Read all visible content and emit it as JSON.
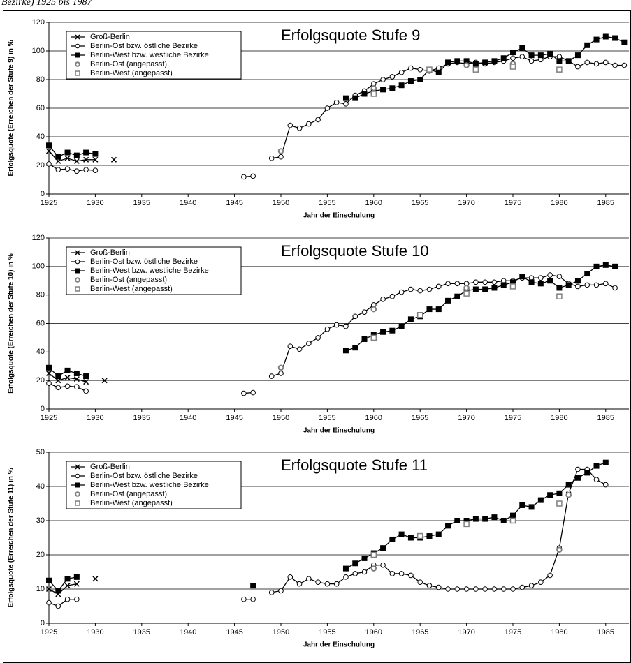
{
  "caption": "Bezirke) 1925 bis 1987",
  "chart_data": [
    {
      "type": "line",
      "title": "Erfolgsquote Stufe 9",
      "xlabel": "Jahr der Einschulung",
      "ylabel": "Erfolgsquote (Erreichen der Stufe 9) in %",
      "xlim": [
        1925,
        1987.5
      ],
      "xticks": [
        1925,
        1930,
        1935,
        1940,
        1945,
        1950,
        1955,
        1960,
        1965,
        1970,
        1975,
        1980,
        1985
      ],
      "ylim": [
        0,
        120
      ],
      "yticks": [
        0,
        20,
        40,
        60,
        80,
        100,
        120
      ],
      "grid": true,
      "legend": "upper left",
      "series": [
        {
          "name": "Groß-Berlin",
          "color": "#000000",
          "marker": "x",
          "filled": false,
          "line": true,
          "x": [
            1925,
            1926,
            1927,
            1928,
            1929,
            1930,
            1931,
            1932
          ],
          "values": [
            30,
            23,
            25,
            23,
            24,
            24,
            null,
            24
          ]
        },
        {
          "name": "Berlin-Ost bzw. östliche Bezirke",
          "color": "#000000",
          "marker": "circle",
          "filled": false,
          "line": true,
          "x": [
            1925,
            1926,
            1927,
            1928,
            1929,
            1930,
            1931,
            1946,
            1947,
            1948,
            1949,
            1950,
            1951,
            1952,
            1953,
            1954,
            1955,
            1956,
            1957,
            1958,
            1959,
            1960,
            1961,
            1962,
            1963,
            1964,
            1965,
            1966,
            1967,
            1968,
            1969,
            1970,
            1971,
            1972,
            1973,
            1974,
            1975,
            1976,
            1977,
            1978,
            1979,
            1980,
            1981,
            1982,
            1983,
            1984,
            1985,
            1986,
            1987
          ],
          "values": [
            21,
            17,
            17.5,
            16,
            17,
            16.5,
            null,
            12,
            12.5,
            null,
            25,
            26,
            48,
            46,
            49,
            52,
            60,
            64,
            63,
            69,
            72,
            77,
            80,
            82,
            85,
            88,
            87,
            86,
            88,
            91,
            92,
            91,
            92,
            91,
            92,
            93,
            95,
            96,
            93,
            94,
            96,
            96,
            93,
            89,
            92,
            91,
            92,
            90,
            90
          ]
        },
        {
          "name": "Berlin-West bzw. westliche Bezirke",
          "color": "#000000",
          "marker": "square",
          "filled": true,
          "line": true,
          "x": [
            1925,
            1926,
            1927,
            1928,
            1929,
            1930,
            1931,
            1957,
            1958,
            1959,
            1960,
            1961,
            1962,
            1963,
            1964,
            1965,
            1966,
            1967,
            1968,
            1969,
            1970,
            1971,
            1972,
            1973,
            1974,
            1975,
            1976,
            1977,
            1978,
            1979,
            1980,
            1981,
            1982,
            1983,
            1984,
            1985,
            1986,
            1987
          ],
          "values": [
            34,
            26,
            29,
            27,
            29,
            28,
            null,
            67,
            67,
            70,
            72,
            73,
            74,
            76,
            79,
            80,
            87,
            85,
            92,
            93,
            93,
            91,
            92,
            93,
            95,
            99,
            102,
            97,
            97,
            98,
            93,
            93,
            97,
            104,
            108,
            110,
            109,
            106
          ]
        },
        {
          "name": "Berlin-Ost (angepasst)",
          "color": "#808080",
          "marker": "circle",
          "filled": false,
          "line": false,
          "x": [
            1950,
            1960,
            1970,
            1975
          ],
          "values": [
            30,
            74,
            90,
            91
          ]
        },
        {
          "name": "Berlin-West (angepasst)",
          "color": "#808080",
          "marker": "square",
          "filled": false,
          "line": false,
          "x": [
            1960,
            1966,
            1971,
            1975,
            1980
          ],
          "values": [
            70,
            87,
            87,
            89,
            87
          ]
        }
      ]
    },
    {
      "type": "line",
      "title": "Erfolgsquote Stufe 10",
      "xlabel": "Jahr der Einschulung",
      "ylabel": "Erfolgsquote (Erreichen der Stufe 10) in %",
      "xlim": [
        1925,
        1987.5
      ],
      "xticks": [
        1925,
        1930,
        1935,
        1940,
        1945,
        1950,
        1955,
        1960,
        1965,
        1970,
        1975,
        1980,
        1985
      ],
      "ylim": [
        0,
        120
      ],
      "yticks": [
        0,
        20,
        40,
        60,
        80,
        100,
        120
      ],
      "grid": true,
      "legend": "upper left",
      "series": [
        {
          "name": "Groß-Berlin",
          "color": "#000000",
          "marker": "x",
          "filled": false,
          "line": true,
          "x": [
            1925,
            1926,
            1927,
            1928,
            1929,
            1930,
            1931
          ],
          "values": [
            25,
            20,
            22,
            21,
            19,
            null,
            20
          ]
        },
        {
          "name": "Berlin-Ost bzw. östliche Bezirke",
          "color": "#000000",
          "marker": "circle",
          "filled": false,
          "line": true,
          "x": [
            1925,
            1926,
            1927,
            1928,
            1929,
            1930,
            1946,
            1947,
            1948,
            1949,
            1950,
            1951,
            1952,
            1953,
            1954,
            1955,
            1956,
            1957,
            1958,
            1959,
            1960,
            1961,
            1962,
            1963,
            1964,
            1965,
            1966,
            1967,
            1968,
            1969,
            1970,
            1971,
            1972,
            1973,
            1974,
            1975,
            1976,
            1977,
            1978,
            1979,
            1980,
            1981,
            1982,
            1983,
            1984,
            1985,
            1986
          ],
          "values": [
            18,
            15,
            16,
            15.5,
            12.5,
            null,
            11,
            11.5,
            null,
            23,
            25,
            44,
            42,
            46,
            50,
            56,
            59,
            58,
            65,
            68,
            73,
            77,
            79,
            82,
            84,
            83,
            84,
            86,
            88,
            88,
            88,
            89,
            89,
            89,
            90,
            90,
            92,
            92,
            92,
            94,
            93,
            88,
            86,
            87,
            87,
            88,
            85
          ]
        },
        {
          "name": "Berlin-West bzw. westliche Bezirke",
          "color": "#000000",
          "marker": "square",
          "filled": true,
          "line": true,
          "x": [
            1925,
            1926,
            1927,
            1928,
            1929,
            1930,
            1957,
            1958,
            1959,
            1960,
            1961,
            1962,
            1963,
            1964,
            1965,
            1966,
            1967,
            1968,
            1969,
            1970,
            1971,
            1972,
            1973,
            1974,
            1975,
            1976,
            1977,
            1978,
            1979,
            1980,
            1981,
            1982,
            1983,
            1984,
            1985,
            1986
          ],
          "values": [
            29,
            23,
            27,
            25,
            23,
            null,
            41,
            43,
            49,
            52,
            54,
            55,
            58,
            63,
            65,
            70,
            70,
            76,
            79,
            83,
            84,
            84,
            85,
            87,
            89,
            93,
            89,
            88,
            90,
            85,
            87,
            90,
            95,
            100,
            101,
            100
          ]
        },
        {
          "name": "Berlin-Ost (angepasst)",
          "color": "#808080",
          "marker": "circle",
          "filled": false,
          "line": false,
          "x": [
            1950,
            1960,
            1970
          ],
          "values": [
            29,
            70,
            85
          ]
        },
        {
          "name": "Berlin-West (angepasst)",
          "color": "#808080",
          "marker": "square",
          "filled": false,
          "line": false,
          "x": [
            1960,
            1965,
            1970,
            1975,
            1980
          ],
          "values": [
            50,
            66,
            81,
            86,
            79
          ]
        }
      ]
    },
    {
      "type": "line",
      "title": "Erfolgsquote Stufe 11",
      "xlabel": "Jahr der Einschulung",
      "ylabel": "Erfolgsquote (Erreichen der Stufe 11) in %",
      "xlim": [
        1925,
        1987.5
      ],
      "xticks": [
        1925,
        1930,
        1935,
        1940,
        1945,
        1950,
        1955,
        1960,
        1965,
        1970,
        1975,
        1980,
        1985
      ],
      "ylim": [
        0,
        50
      ],
      "yticks": [
        0,
        10,
        20,
        30,
        40,
        50
      ],
      "grid": true,
      "legend": "upper left",
      "series": [
        {
          "name": "Groß-Berlin",
          "color": "#000000",
          "marker": "x",
          "filled": false,
          "line": true,
          "x": [
            1925,
            1926,
            1927,
            1928,
            1929,
            1930
          ],
          "values": [
            10,
            8.5,
            11,
            11.5,
            null,
            13
          ]
        },
        {
          "name": "Berlin-Ost bzw. östliche Bezirke",
          "color": "#000000",
          "marker": "circle",
          "filled": false,
          "line": true,
          "x": [
            1925,
            1926,
            1927,
            1928,
            1929,
            1946,
            1947,
            1948,
            1949,
            1950,
            1951,
            1952,
            1953,
            1954,
            1955,
            1956,
            1957,
            1958,
            1959,
            1960,
            1961,
            1962,
            1963,
            1964,
            1965,
            1966,
            1967,
            1968,
            1969,
            1970,
            1971,
            1972,
            1973,
            1974,
            1975,
            1976,
            1977,
            1978,
            1979,
            1980,
            1981,
            1982,
            1983,
            1984,
            1985
          ],
          "values": [
            6,
            5,
            7,
            7,
            null,
            7,
            7,
            null,
            9,
            9.5,
            13.5,
            11.5,
            13,
            12,
            11.5,
            11.5,
            13.5,
            14.5,
            15,
            17,
            17,
            14.5,
            14.5,
            14,
            12,
            11,
            10.5,
            10,
            10,
            10,
            10,
            10,
            10,
            10,
            10,
            10.5,
            11,
            12,
            14,
            22,
            38,
            45,
            45,
            42,
            40.5
          ]
        },
        {
          "name": "Berlin-West bzw. westliche Bezirke",
          "color": "#000000",
          "marker": "square",
          "filled": true,
          "line": true,
          "x": [
            1925,
            1926,
            1927,
            1928,
            1929,
            1947,
            1948,
            1957,
            1958,
            1959,
            1960,
            1961,
            1962,
            1963,
            1964,
            1965,
            1966,
            1967,
            1968,
            1969,
            1970,
            1971,
            1972,
            1973,
            1974,
            1975,
            1976,
            1977,
            1978,
            1979,
            1980,
            1981,
            1982,
            1983,
            1984,
            1985
          ],
          "values": [
            12.5,
            9.5,
            13,
            13.5,
            null,
            11,
            null,
            16,
            17.5,
            19,
            20.5,
            22,
            24.5,
            26,
            25,
            25,
            25.5,
            26,
            28.5,
            30,
            30,
            30.5,
            30.5,
            31,
            30,
            31.5,
            34.5,
            34,
            36,
            37.5,
            38,
            40.5,
            42.5,
            44,
            46,
            47
          ]
        },
        {
          "name": "Berlin-Ost (angepasst)",
          "color": "#808080",
          "marker": "circle",
          "filled": false,
          "line": false,
          "x": [
            1960,
            1980,
            1981
          ],
          "values": [
            16,
            21.5,
            37.5
          ]
        },
        {
          "name": "Berlin-West (angepasst)",
          "color": "#808080",
          "marker": "square",
          "filled": false,
          "line": false,
          "x": [
            1960,
            1965,
            1970,
            1975,
            1980
          ],
          "values": [
            20,
            25.5,
            29,
            30,
            35
          ]
        }
      ]
    }
  ]
}
